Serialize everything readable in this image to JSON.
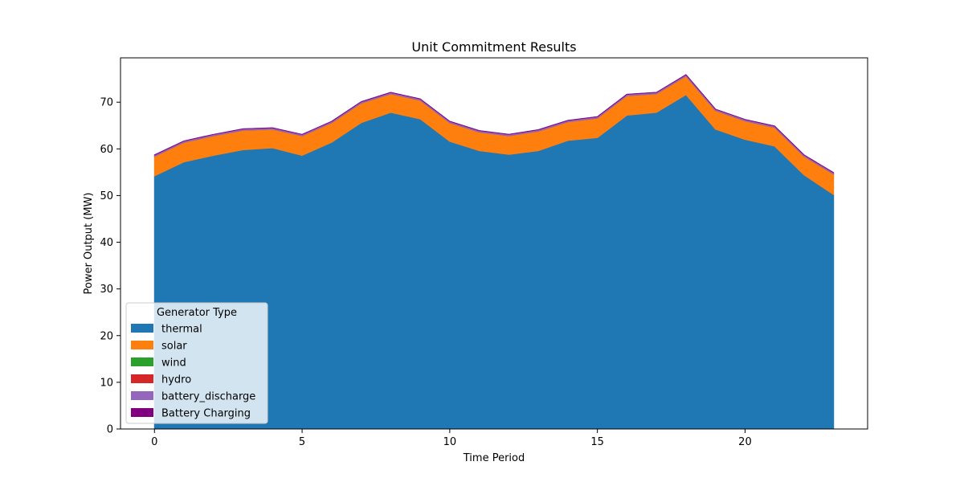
{
  "chart_data": {
    "type": "area",
    "title": "Unit Commitment Results",
    "xlabel": "Time Period",
    "ylabel": "Power Output (MW)",
    "xlim": [
      -1.15,
      24.15
    ],
    "ylim": [
      0,
      79.5
    ],
    "x_ticks": [
      0,
      5,
      10,
      15,
      20
    ],
    "y_ticks": [
      0,
      10,
      20,
      30,
      40,
      50,
      60,
      70
    ],
    "grid": false,
    "legend": {
      "title": "Generator Type",
      "placement": "lower-left"
    },
    "x": [
      0,
      1,
      2,
      3,
      4,
      5,
      6,
      7,
      8,
      9,
      10,
      11,
      12,
      13,
      14,
      15,
      16,
      17,
      18,
      19,
      20,
      21,
      22,
      23
    ],
    "series": [
      {
        "name": "thermal",
        "color": "#1f77b4",
        "values": [
          54.2,
          57.2,
          58.6,
          59.8,
          60.2,
          58.6,
          61.4,
          65.6,
          67.8,
          66.4,
          61.6,
          59.6,
          58.8,
          59.6,
          61.8,
          62.4,
          67.2,
          67.8,
          71.6,
          64.2,
          62.0,
          60.6,
          54.4,
          50.2
        ]
      },
      {
        "name": "solar",
        "color": "#ff7f0e",
        "values": [
          4.2,
          4.2,
          4.2,
          4.2,
          4.0,
          4.2,
          4.2,
          4.2,
          4.0,
          4.0,
          4.0,
          4.0,
          4.0,
          4.2,
          4.0,
          4.2,
          4.2,
          4.0,
          4.0,
          4.0,
          4.0,
          4.0,
          4.0,
          4.4
        ]
      },
      {
        "name": "wind",
        "color": "#2ca02c",
        "values": [
          0,
          0,
          0,
          0,
          0,
          0,
          0,
          0,
          0,
          0,
          0,
          0,
          0,
          0,
          0,
          0,
          0,
          0,
          0,
          0,
          0,
          0,
          0,
          0
        ]
      },
      {
        "name": "hydro",
        "color": "#d62728",
        "values": [
          0,
          0,
          0,
          0,
          0,
          0,
          0,
          0,
          0,
          0,
          0,
          0,
          0,
          0,
          0,
          0,
          0,
          0,
          0,
          0,
          0,
          0,
          0,
          0
        ]
      },
      {
        "name": "battery_discharge",
        "color": "#9467bd",
        "values": [
          0.3,
          0.3,
          0.3,
          0.3,
          0.3,
          0.3,
          0.3,
          0.3,
          0.3,
          0.3,
          0.3,
          0.3,
          0.3,
          0.3,
          0.3,
          0.3,
          0.3,
          0.3,
          0.3,
          0.3,
          0.3,
          0.3,
          0.3,
          0.3
        ]
      },
      {
        "name": "Battery Charging",
        "color": "#800080",
        "values": [
          0,
          0,
          0,
          0,
          0,
          0,
          0,
          0,
          0,
          0,
          0,
          0,
          0,
          0,
          0,
          0,
          0,
          0,
          0,
          0,
          0,
          0,
          0,
          0
        ]
      }
    ]
  }
}
